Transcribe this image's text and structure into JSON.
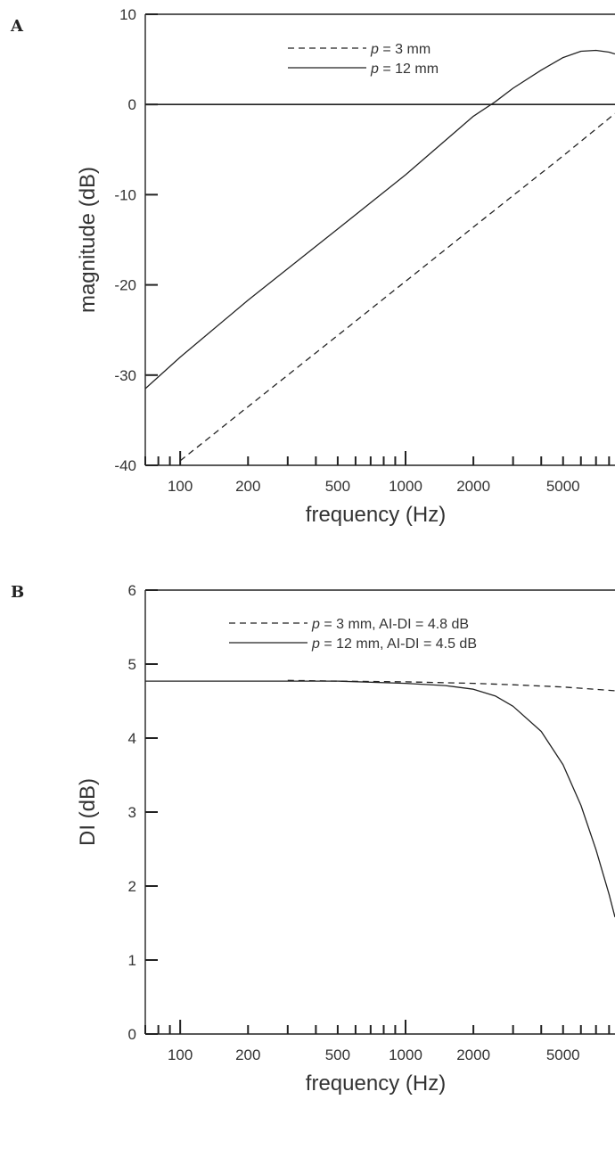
{
  "chart_data": [
    {
      "panel": "A",
      "type": "line",
      "xlabel": "frequency (Hz)",
      "ylabel": "magnitude (dB)",
      "x_scale": "log",
      "xlim": [
        70,
        8500
      ],
      "ylim": [
        -40,
        10
      ],
      "x_ticks": [
        100,
        200,
        500,
        1000,
        2000,
        5000
      ],
      "x_tick_labels": [
        "100",
        "200",
        "500",
        "1000",
        "2000",
        "5000"
      ],
      "y_ticks": [
        -40,
        -30,
        -20,
        -10,
        0,
        10
      ],
      "y_tick_labels": [
        "-40",
        "-30",
        "-20",
        "-10",
        "0",
        "10"
      ],
      "reference_line_y": 0,
      "legend_position": "top-center",
      "series": [
        {
          "name": "p = 3 mm",
          "name_parts": {
            "var": "p",
            "rest": " = 3 mm"
          },
          "style": "dashed",
          "x": [
            100,
            200,
            500,
            1000,
            2000,
            3000,
            5000,
            8500
          ],
          "y": [
            -39.5,
            -33.5,
            -25.6,
            -19.6,
            -13.6,
            -10.1,
            -5.7,
            -1.0
          ]
        },
        {
          "name": "p = 12 mm",
          "name_parts": {
            "var": "p",
            "rest": " = 12 mm"
          },
          "style": "solid",
          "x": [
            70,
            100,
            200,
            500,
            1000,
            2000,
            2500,
            3000,
            4000,
            5000,
            6000,
            7000,
            8000,
            8500
          ],
          "y": [
            -31.5,
            -28.0,
            -21.7,
            -13.8,
            -7.8,
            -1.3,
            0.3,
            1.8,
            3.8,
            5.2,
            5.9,
            6.0,
            5.8,
            5.6
          ]
        }
      ]
    },
    {
      "panel": "B",
      "type": "line",
      "xlabel": "frequency (Hz)",
      "ylabel": "DI (dB)",
      "x_scale": "log",
      "xlim": [
        70,
        8500
      ],
      "ylim": [
        0,
        6
      ],
      "x_ticks": [
        100,
        200,
        500,
        1000,
        2000,
        5000
      ],
      "x_tick_labels": [
        "100",
        "200",
        "500",
        "1000",
        "2000",
        "5000"
      ],
      "y_ticks": [
        0,
        1,
        2,
        3,
        4,
        5,
        6
      ],
      "y_tick_labels": [
        "0",
        "1",
        "2",
        "3",
        "4",
        "5",
        "6"
      ],
      "legend_position": "top-center",
      "series": [
        {
          "name": "p = 3 mm, AI-DI = 4.8 dB",
          "name_parts": {
            "var": "p",
            "rest": " = 3 mm, AI-DI = 4.8 dB"
          },
          "style": "dashed",
          "x": [
            300,
            500,
            1000,
            2000,
            3000,
            5000,
            8500
          ],
          "y": [
            4.78,
            4.77,
            4.76,
            4.74,
            4.72,
            4.69,
            4.64
          ]
        },
        {
          "name": "p = 12 mm, AI-DI = 4.5 dB",
          "name_parts": {
            "var": "p",
            "rest": " = 12 mm, AI-DI = 4.5 dB"
          },
          "style": "solid",
          "x": [
            70,
            200,
            500,
            1000,
            1500,
            2000,
            2500,
            3000,
            4000,
            5000,
            6000,
            7000,
            8000,
            8500
          ],
          "y": [
            4.77,
            4.77,
            4.77,
            4.74,
            4.71,
            4.66,
            4.57,
            4.43,
            4.09,
            3.64,
            3.09,
            2.49,
            1.89,
            1.58
          ]
        }
      ]
    }
  ]
}
